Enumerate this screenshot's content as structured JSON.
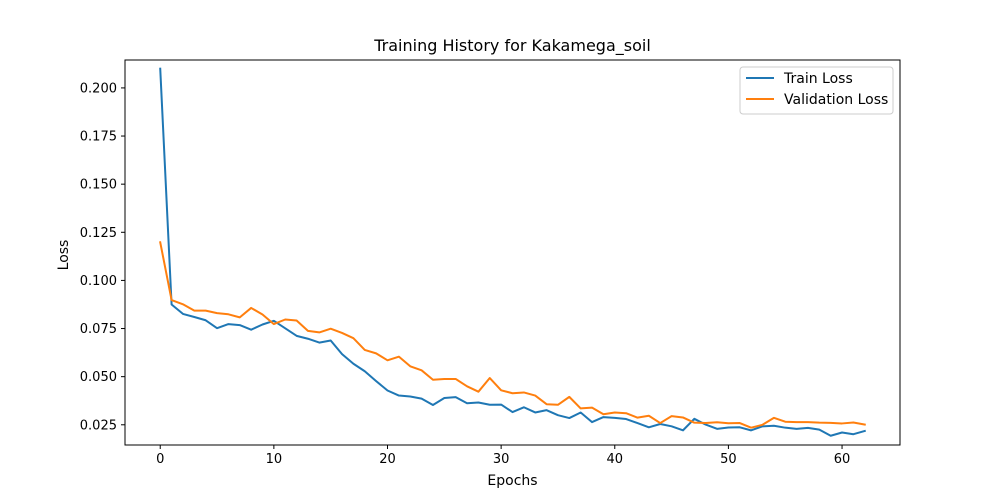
{
  "chart_data": {
    "type": "line",
    "title": "Training History for Kakamega_soil",
    "xlabel": "Epochs",
    "ylabel": "Loss",
    "xlim": [
      -3.1,
      65.1
    ],
    "ylim": [
      0.0145,
      0.2145
    ],
    "xticks": [
      0,
      10,
      20,
      30,
      40,
      50,
      60
    ],
    "xtick_labels": [
      "0",
      "10",
      "20",
      "30",
      "40",
      "50",
      "60"
    ],
    "yticks": [
      0.025,
      0.05,
      0.075,
      0.1,
      0.125,
      0.15,
      0.175,
      0.2
    ],
    "ytick_labels": [
      "0.025",
      "0.050",
      "0.075",
      "0.100",
      "0.125",
      "0.150",
      "0.175",
      "0.200"
    ],
    "grid": false,
    "legend_position": "top-right",
    "series": [
      {
        "name": "Train Loss",
        "color": "#1f77b4",
        "values": [
          0.21,
          0.0875,
          0.0826,
          0.081,
          0.0793,
          0.0752,
          0.0773,
          0.0768,
          0.0744,
          0.0771,
          0.079,
          0.0751,
          0.0712,
          0.0697,
          0.0677,
          0.0688,
          0.0617,
          0.0567,
          0.0528,
          0.0477,
          0.0428,
          0.0402,
          0.0397,
          0.0386,
          0.0353,
          0.0389,
          0.0394,
          0.0362,
          0.0366,
          0.0354,
          0.0355,
          0.0316,
          0.0341,
          0.0314,
          0.0326,
          0.03,
          0.0285,
          0.0314,
          0.0264,
          0.029,
          0.0286,
          0.028,
          0.0259,
          0.0237,
          0.0254,
          0.0242,
          0.0221,
          0.0281,
          0.0251,
          0.0229,
          0.0236,
          0.0237,
          0.0221,
          0.0242,
          0.0245,
          0.0235,
          0.0229,
          0.0234,
          0.0225,
          0.0193,
          0.021,
          0.0201,
          0.0218
        ]
      },
      {
        "name": "Validation Loss",
        "color": "#ff7f0e",
        "values": [
          0.1198,
          0.0898,
          0.0876,
          0.0843,
          0.0843,
          0.083,
          0.0824,
          0.0808,
          0.0857,
          0.0823,
          0.0773,
          0.0797,
          0.0792,
          0.0738,
          0.073,
          0.0749,
          0.0727,
          0.07,
          0.0639,
          0.0621,
          0.0585,
          0.0604,
          0.0554,
          0.0533,
          0.0484,
          0.0488,
          0.0488,
          0.045,
          0.0422,
          0.0493,
          0.0429,
          0.0414,
          0.0418,
          0.0402,
          0.0357,
          0.0354,
          0.0395,
          0.0335,
          0.0339,
          0.0305,
          0.0314,
          0.031,
          0.0287,
          0.0297,
          0.0259,
          0.0295,
          0.0288,
          0.0261,
          0.0259,
          0.0263,
          0.0258,
          0.0259,
          0.0235,
          0.025,
          0.0286,
          0.0266,
          0.0264,
          0.0264,
          0.0261,
          0.026,
          0.0257,
          0.0262,
          0.0251
        ]
      }
    ]
  }
}
